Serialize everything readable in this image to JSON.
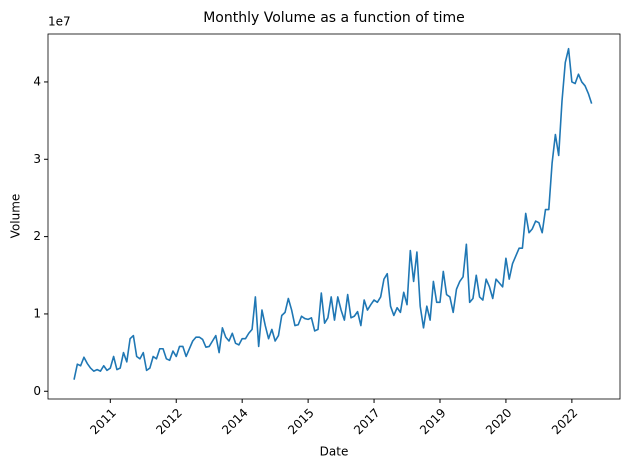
{
  "chart_data": {
    "type": "line",
    "title": "Monthly Volume as a function of time",
    "x_label": "Date",
    "y_label": "Volume",
    "y_offset_label": "1e7",
    "color": "#1f77b4",
    "values": [
      0.15,
      0.35,
      0.33,
      0.44,
      0.36,
      0.3,
      0.26,
      0.28,
      0.26,
      0.33,
      0.27,
      0.3,
      0.45,
      0.28,
      0.3,
      0.5,
      0.38,
      0.68,
      0.72,
      0.45,
      0.42,
      0.5,
      0.27,
      0.3,
      0.45,
      0.42,
      0.55,
      0.55,
      0.42,
      0.4,
      0.52,
      0.45,
      0.58,
      0.58,
      0.45,
      0.55,
      0.65,
      0.7,
      0.7,
      0.67,
      0.57,
      0.58,
      0.65,
      0.72,
      0.5,
      0.82,
      0.7,
      0.65,
      0.75,
      0.62,
      0.6,
      0.68,
      0.68,
      0.75,
      0.8,
      1.22,
      0.58,
      1.05,
      0.85,
      0.68,
      0.8,
      0.65,
      0.72,
      0.98,
      1.02,
      1.2,
      1.05,
      0.85,
      0.86,
      0.97,
      0.94,
      0.93,
      0.95,
      0.78,
      0.8,
      1.27,
      0.88,
      0.95,
      1.22,
      0.92,
      1.22,
      1.05,
      0.92,
      1.25,
      0.95,
      0.97,
      1.03,
      0.85,
      1.18,
      1.05,
      1.12,
      1.18,
      1.15,
      1.22,
      1.45,
      1.52,
      1.1,
      0.98,
      1.08,
      1.02,
      1.28,
      1.12,
      1.82,
      1.42,
      1.8,
      1.1,
      0.82,
      1.1,
      0.92,
      1.42,
      1.15,
      1.15,
      1.55,
      1.25,
      1.22,
      1.02,
      1.32,
      1.42,
      1.48,
      1.9,
      1.15,
      1.2,
      1.5,
      1.22,
      1.18,
      1.45,
      1.35,
      1.2,
      1.45,
      1.4,
      1.35,
      1.72,
      1.45,
      1.65,
      1.75,
      1.85,
      1.85,
      2.3,
      2.05,
      2.1,
      2.2,
      2.18,
      2.05,
      2.35,
      2.35,
      2.95,
      3.32,
      3.05,
      3.75,
      4.25,
      4.43,
      4.0,
      3.98,
      4.1,
      4.0,
      3.95,
      3.85,
      3.72
    ],
    "xlim": [
      -7.9,
      165.6
    ],
    "xticks": [
      {
        "value": 11,
        "label": "2011"
      },
      {
        "value": 31,
        "label": "2012"
      },
      {
        "value": 51,
        "label": "2014"
      },
      {
        "value": 71,
        "label": "2015"
      },
      {
        "value": 91,
        "label": "2017"
      },
      {
        "value": 111,
        "label": "2019"
      },
      {
        "value": 131,
        "label": "2020"
      },
      {
        "value": 151,
        "label": "2022"
      }
    ],
    "ylim": [
      -0.1,
      4.62
    ],
    "yticks": [
      0,
      1,
      2,
      3,
      4
    ]
  }
}
